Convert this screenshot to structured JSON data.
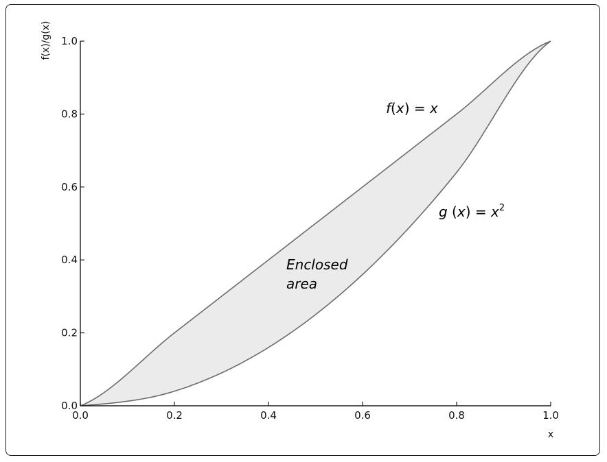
{
  "chart_data": {
    "type": "area",
    "title": "",
    "xlabel": "x",
    "ylabel": "f(x)/g(x)",
    "xlim": [
      0.0,
      1.0
    ],
    "ylim": [
      0.0,
      1.0
    ],
    "xticks": [
      "0.0",
      "0.2",
      "0.4",
      "0.6",
      "0.8",
      "1.0"
    ],
    "yticks": [
      "0.0",
      "0.2",
      "0.4",
      "0.6",
      "0.8",
      "1.0"
    ],
    "grid": false,
    "series": [
      {
        "expression": "f(x) = x",
        "x": [
          0.0,
          0.2,
          0.4,
          0.6,
          0.8,
          1.0
        ],
        "y": [
          0.0,
          0.2,
          0.4,
          0.6,
          0.8,
          1.0
        ]
      },
      {
        "expression": "g(x) = x^2",
        "x": [
          0.0,
          0.2,
          0.4,
          0.6,
          0.8,
          1.0
        ],
        "y": [
          0.0,
          0.04,
          0.16,
          0.36,
          0.64,
          1.0
        ]
      }
    ],
    "fill_between": {
      "upper": "f(x) = x",
      "lower": "g(x) = x^2",
      "color": "#ebebeb"
    },
    "annotations": {
      "f_label": {
        "pre": "f",
        "paren_open": "(",
        "var": "x",
        "paren_close": ")",
        "eq": " = ",
        "rhs": "x"
      },
      "g_label": {
        "pre": "g",
        "paren_open": " (",
        "var": "x",
        "paren_close": ")",
        "eq": " = ",
        "rhs": "x",
        "exp": "2"
      },
      "area_line1": "Enclosed",
      "area_line2": "area"
    },
    "colors": {
      "curve": "#6b6b6b",
      "fill": "#ebebeb",
      "axis": "#1a1a1a"
    }
  }
}
